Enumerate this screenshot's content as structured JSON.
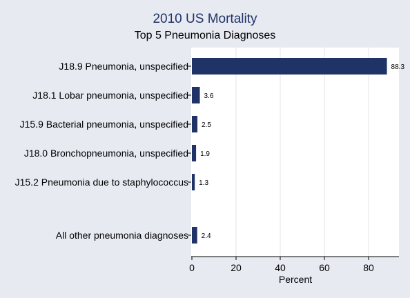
{
  "chart_data": {
    "type": "bar",
    "orientation": "horizontal",
    "title": "2010 US Mortality",
    "subtitle": "Top 5 Pneumonia Diagnoses",
    "xlabel": "Percent",
    "ylabel": "",
    "xlim": [
      0,
      90
    ],
    "xticks": [
      0,
      20,
      40,
      60,
      80
    ],
    "grid": true,
    "categories": [
      "J18.9 Pneumonia, unspecified",
      "J18.1 Lobar pneumonia, unspecified",
      "J15.9 Bacterial pneumonia, unspecified",
      "J18.0 Bronchopneumonia, unspecified",
      "J15.2 Pneumonia due to staphylococcus",
      "All other pneumonia diagnoses"
    ],
    "values": [
      88.3,
      3.6,
      2.5,
      1.9,
      1.3,
      2.4
    ],
    "value_labels": [
      "88.3",
      "3.6",
      "2.5",
      "1.9",
      "1.3",
      "2.4"
    ],
    "colors": {
      "bar": "#1f3366",
      "plot_bg": "#ffffff",
      "page_bg": "#e8eaf2",
      "grid": "#e4e6ec",
      "title": "#1f3366"
    }
  }
}
